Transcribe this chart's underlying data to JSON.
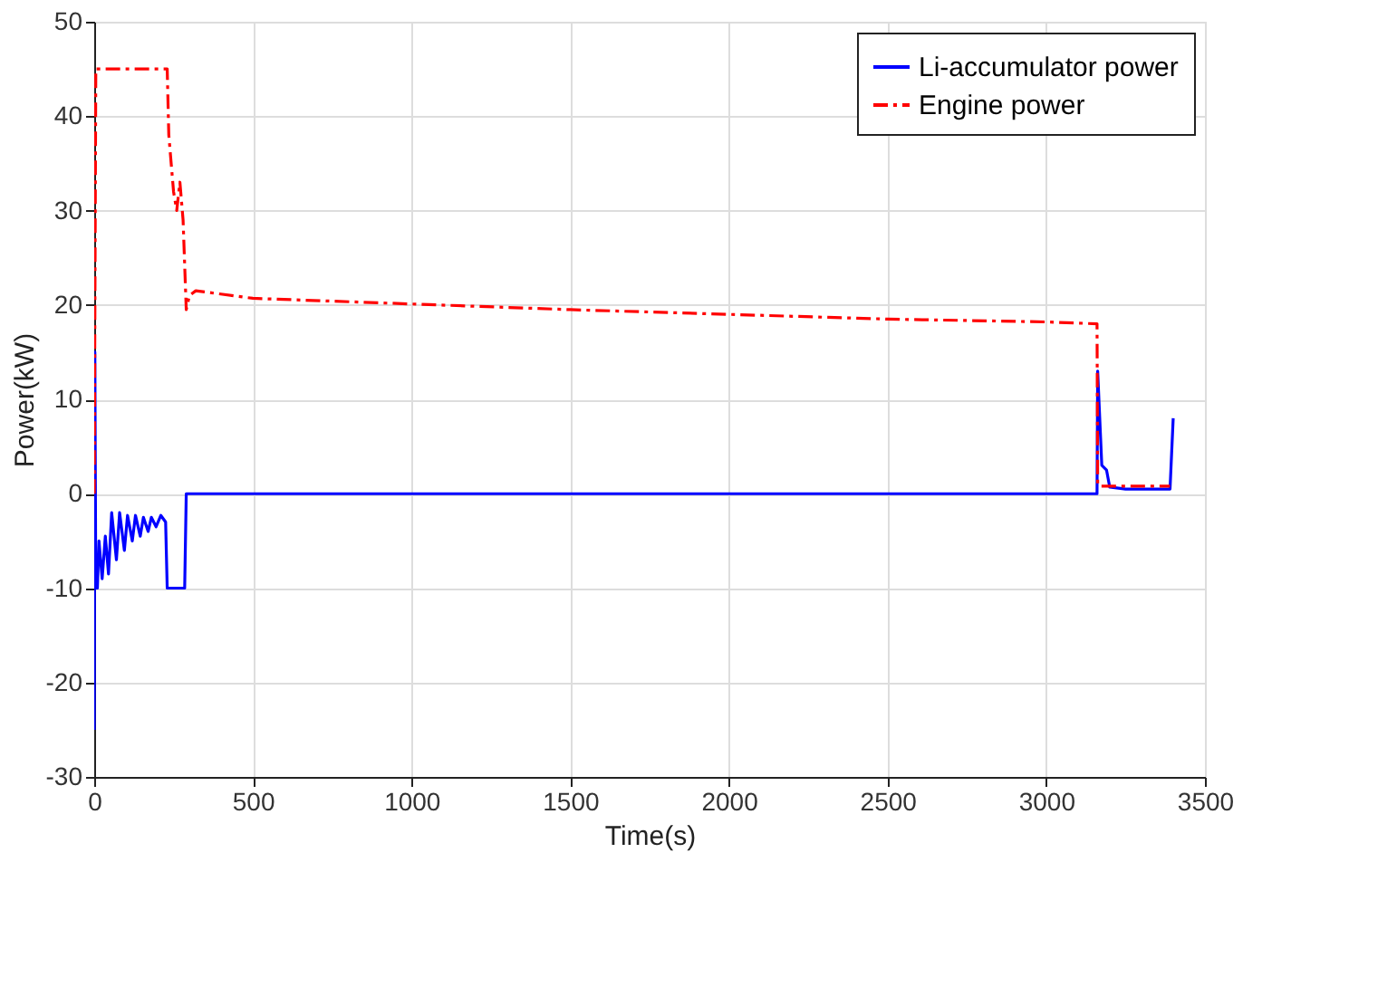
{
  "chart_data": {
    "type": "line",
    "xlabel": "Time(s)",
    "ylabel": "Power(kW)",
    "xlim": [
      0,
      3500
    ],
    "xticks": [
      0,
      500,
      1000,
      1500,
      2000,
      2500,
      3000,
      3500
    ],
    "ylim": [
      -30,
      50
    ],
    "yticks": [
      -30,
      -20,
      -10,
      0,
      10,
      20,
      30,
      40,
      50
    ],
    "grid": true,
    "legend": "top right",
    "series": [
      {
        "name": "Li-accumulator power",
        "color": "#0000ff",
        "line_style": "solid",
        "x": [
          0,
          2,
          5,
          10,
          15,
          25,
          35,
          45,
          55,
          70,
          80,
          95,
          105,
          120,
          130,
          145,
          155,
          170,
          180,
          195,
          210,
          225,
          230,
          285,
          290,
          600,
          1500,
          3160,
          3162,
          3175,
          3190,
          3200,
          3250,
          3390,
          3400
        ],
        "values": [
          -25,
          15,
          -10,
          -10,
          -5,
          -9,
          -4.5,
          -8.5,
          -2,
          -7,
          -2,
          -6,
          -2.3,
          -5,
          -2.3,
          -4.5,
          -2.5,
          -4,
          -2.5,
          -3.5,
          -2.3,
          -3,
          -10,
          -10,
          0,
          0,
          0,
          0,
          13,
          3,
          2.5,
          0.7,
          0.5,
          0.5,
          8
        ]
      },
      {
        "name": "Engine power",
        "color": "#ff0000",
        "line_style": "dashdot",
        "x": [
          0,
          5,
          230,
          235,
          250,
          260,
          270,
          280,
          290,
          300,
          320,
          500,
          1000,
          1500,
          2000,
          2500,
          3000,
          3160,
          3162,
          3170,
          3390
        ],
        "values": [
          0,
          45,
          45,
          38,
          32,
          30,
          33,
          29,
          19.5,
          21,
          21.5,
          20.7,
          20.1,
          19.5,
          19,
          18.5,
          18.2,
          18,
          1,
          0.8,
          0.8
        ]
      }
    ]
  }
}
